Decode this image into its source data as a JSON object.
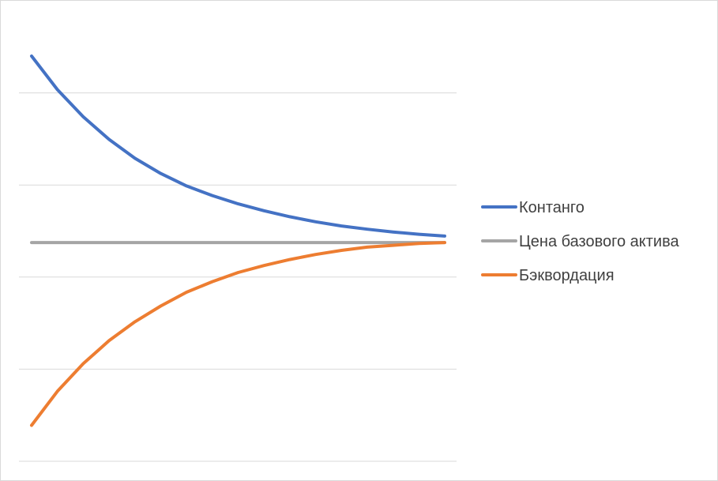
{
  "chart_data": {
    "type": "line",
    "title": "",
    "xlabel": "",
    "ylabel": "",
    "grid": true,
    "legend_position": "right",
    "ylim": [
      0,
      10
    ],
    "y_gridlines": [
      0,
      2,
      4,
      6,
      8
    ],
    "x": [
      1,
      2,
      3,
      4,
      5,
      6,
      7,
      8,
      9,
      10,
      11,
      12,
      13,
      14,
      15,
      16,
      17
    ],
    "series": [
      {
        "name": "Контанго",
        "color": "#4472c4",
        "values": [
          8.8,
          8.07,
          7.48,
          6.99,
          6.58,
          6.25,
          5.98,
          5.77,
          5.59,
          5.44,
          5.31,
          5.2,
          5.11,
          5.04,
          4.98,
          4.93,
          4.89
        ]
      },
      {
        "name": "Цена базового актива",
        "color": "#a5a5a5",
        "values": [
          4.75,
          4.75,
          4.75,
          4.75,
          4.75,
          4.75,
          4.75,
          4.75,
          4.75,
          4.75,
          4.75,
          4.75,
          4.75,
          4.75,
          4.75,
          4.75,
          4.75
        ]
      },
      {
        "name": "Бэквордация",
        "color": "#ed7d31",
        "values": [
          0.78,
          1.52,
          2.12,
          2.62,
          3.03,
          3.37,
          3.67,
          3.9,
          4.1,
          4.25,
          4.38,
          4.49,
          4.58,
          4.65,
          4.69,
          4.73,
          4.75
        ]
      }
    ]
  }
}
